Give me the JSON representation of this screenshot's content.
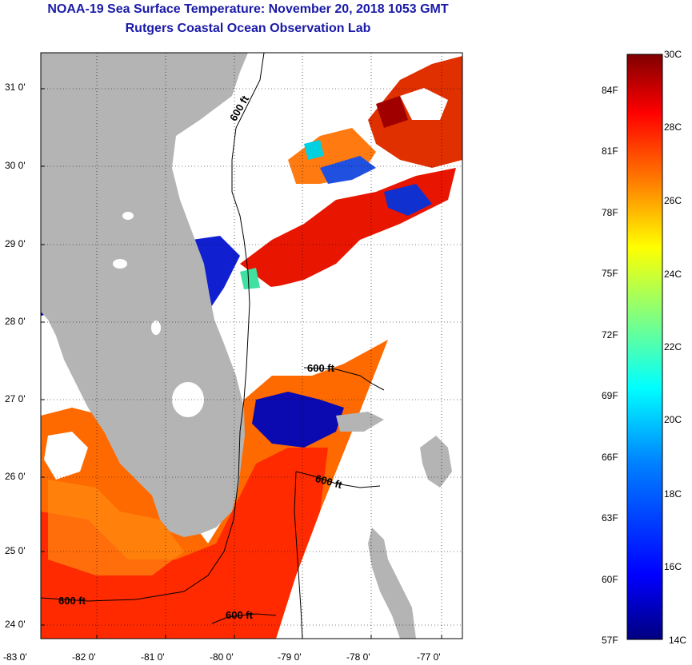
{
  "header": {
    "title": "NOAA-19 Sea Surface Temperature:  November 20, 2018 1053 GMT",
    "subtitle": "Rutgers Coastal Ocean Observation Lab"
  },
  "map": {
    "latitude_labels": [
      "31 0'",
      "30 0'",
      "29 0'",
      "28 0'",
      "27 0'",
      "26 0'",
      "25 0'",
      "24 0'"
    ],
    "longitude_labels": [
      "-83 0'",
      "-82 0'",
      "-81 0'",
      "-80 0'",
      "-79 0'",
      "-78 0'",
      "-77 0'"
    ],
    "land_color": "#b4b4b4",
    "contour_labels": [
      "600 ft",
      "600 ft",
      "600 ft",
      "600 ft",
      "600 ft"
    ]
  },
  "colorbar": {
    "celsius_labels": [
      "30C",
      "28C",
      "26C",
      "24C",
      "22C",
      "20C",
      "18C",
      "16C",
      "14C"
    ],
    "fahrenheit_labels": [
      "84F",
      "81F",
      "78F",
      "75F",
      "72F",
      "69F",
      "66F",
      "63F",
      "60F",
      "57F"
    ],
    "colors": [
      "#800000",
      "#ff0000",
      "#ff8000",
      "#ffff00",
      "#80ff80",
      "#00ffff",
      "#0080ff",
      "#0000ff",
      "#000080"
    ]
  }
}
